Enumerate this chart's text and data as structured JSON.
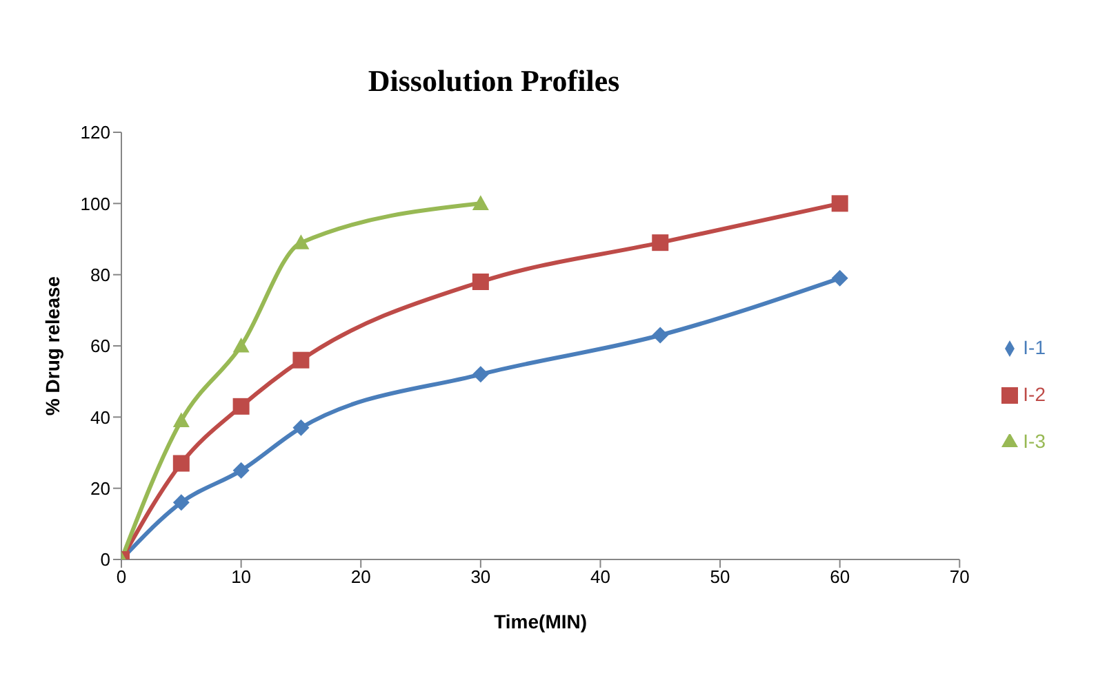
{
  "chart_data": {
    "type": "line",
    "title": "Dissolution Profiles",
    "xlabel": "Time(MIN)",
    "ylabel": "% Drug release",
    "x": [
      0,
      5,
      10,
      15,
      30,
      45,
      60
    ],
    "series": [
      {
        "name": "I-1",
        "color": "#4a7ebb",
        "marker": "diamond",
        "values": [
          0,
          16,
          25,
          37,
          52,
          63,
          79
        ]
      },
      {
        "name": "I-2",
        "color": "#be4b48",
        "marker": "square",
        "values": [
          0,
          27,
          43,
          56,
          78,
          89,
          100
        ]
      },
      {
        "name": "I-3",
        "color": "#98b954",
        "marker": "triangle",
        "x": [
          0,
          5,
          10,
          15,
          30
        ],
        "values": [
          0,
          39,
          60,
          89,
          100
        ]
      }
    ],
    "xlim": [
      0,
      70
    ],
    "xticks": [
      0,
      10,
      20,
      30,
      40,
      50,
      60,
      70
    ],
    "ylim": [
      0,
      120
    ],
    "yticks": [
      0,
      20,
      40,
      60,
      80,
      100,
      120
    ],
    "grid": false,
    "legend": "right",
    "line_style": "solid"
  }
}
